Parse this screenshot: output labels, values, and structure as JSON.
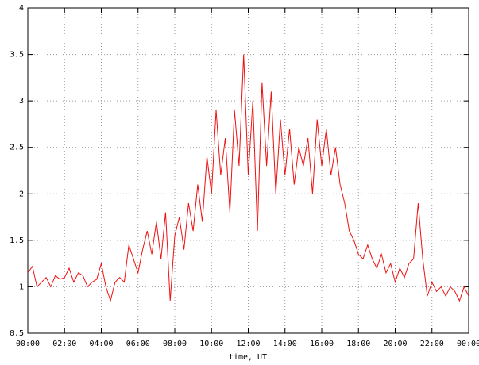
{
  "chart_data": {
    "type": "line",
    "x_label": "time, UT",
    "x": [
      0,
      0.25,
      0.5,
      0.75,
      1,
      1.25,
      1.5,
      1.75,
      2,
      2.25,
      2.5,
      2.75,
      3,
      3.25,
      3.5,
      3.75,
      4,
      4.25,
      4.5,
      4.75,
      5,
      5.25,
      5.5,
      5.75,
      6,
      6.25,
      6.5,
      6.75,
      7,
      7.25,
      7.5,
      7.75,
      8,
      8.25,
      8.5,
      8.75,
      9,
      9.25,
      9.5,
      9.75,
      10,
      10.25,
      10.5,
      10.75,
      11,
      11.25,
      11.5,
      11.75,
      12,
      12.25,
      12.5,
      12.75,
      13,
      13.25,
      13.5,
      13.75,
      14,
      14.25,
      14.5,
      14.75,
      15,
      15.25,
      15.5,
      15.75,
      16,
      16.25,
      16.5,
      16.75,
      17,
      17.25,
      17.5,
      17.75,
      18,
      18.25,
      18.5,
      18.75,
      19,
      19.25,
      19.5,
      19.75,
      20,
      20.25,
      20.5,
      20.75,
      21,
      21.25,
      21.5,
      21.75,
      22,
      22.25,
      22.5,
      22.75,
      23,
      23.25,
      23.5,
      23.75,
      24
    ],
    "series": [
      {
        "color": "#ee1111",
        "values": [
          1.15,
          1.22,
          1.0,
          1.05,
          1.1,
          1.0,
          1.12,
          1.08,
          1.1,
          1.2,
          1.05,
          1.15,
          1.12,
          1.0,
          1.05,
          1.08,
          1.25,
          1.0,
          0.85,
          1.05,
          1.1,
          1.05,
          1.45,
          1.3,
          1.15,
          1.4,
          1.6,
          1.35,
          1.7,
          1.3,
          1.8,
          0.85,
          1.55,
          1.75,
          1.4,
          1.9,
          1.6,
          2.1,
          1.7,
          2.4,
          2.0,
          2.9,
          2.2,
          2.6,
          1.8,
          2.9,
          2.3,
          3.5,
          2.2,
          3.0,
          1.6,
          3.2,
          2.3,
          3.1,
          2.0,
          2.8,
          2.2,
          2.7,
          2.1,
          2.5,
          2.3,
          2.6,
          2.0,
          2.8,
          2.3,
          2.7,
          2.2,
          2.5,
          2.1,
          1.9,
          1.6,
          1.5,
          1.35,
          1.3,
          1.45,
          1.3,
          1.2,
          1.35,
          1.15,
          1.25,
          1.05,
          1.2,
          1.1,
          1.25,
          1.3,
          1.9,
          1.3,
          0.9,
          1.05,
          0.95,
          1.0,
          0.9,
          1.0,
          0.95,
          0.85,
          1.0,
          0.9
        ]
      }
    ],
    "xlim": [
      0,
      24
    ],
    "xticks": [
      {
        "value": 0,
        "label": "00:00"
      },
      {
        "value": 2,
        "label": "02:00"
      },
      {
        "value": 4,
        "label": "04:00"
      },
      {
        "value": 6,
        "label": "06:00"
      },
      {
        "value": 8,
        "label": "08:00"
      },
      {
        "value": 10,
        "label": "10:00"
      },
      {
        "value": 12,
        "label": "12:00"
      },
      {
        "value": 14,
        "label": "14:00"
      },
      {
        "value": 16,
        "label": "16:00"
      },
      {
        "value": 18,
        "label": "18:00"
      },
      {
        "value": 20,
        "label": "20:00"
      },
      {
        "value": 22,
        "label": "22:00"
      },
      {
        "value": 24,
        "label": "00:00"
      }
    ],
    "ylim": [
      0.5,
      4
    ],
    "yticks": [
      0.5,
      1,
      1.5,
      2,
      2.5,
      3,
      3.5,
      4
    ],
    "grid": true
  }
}
